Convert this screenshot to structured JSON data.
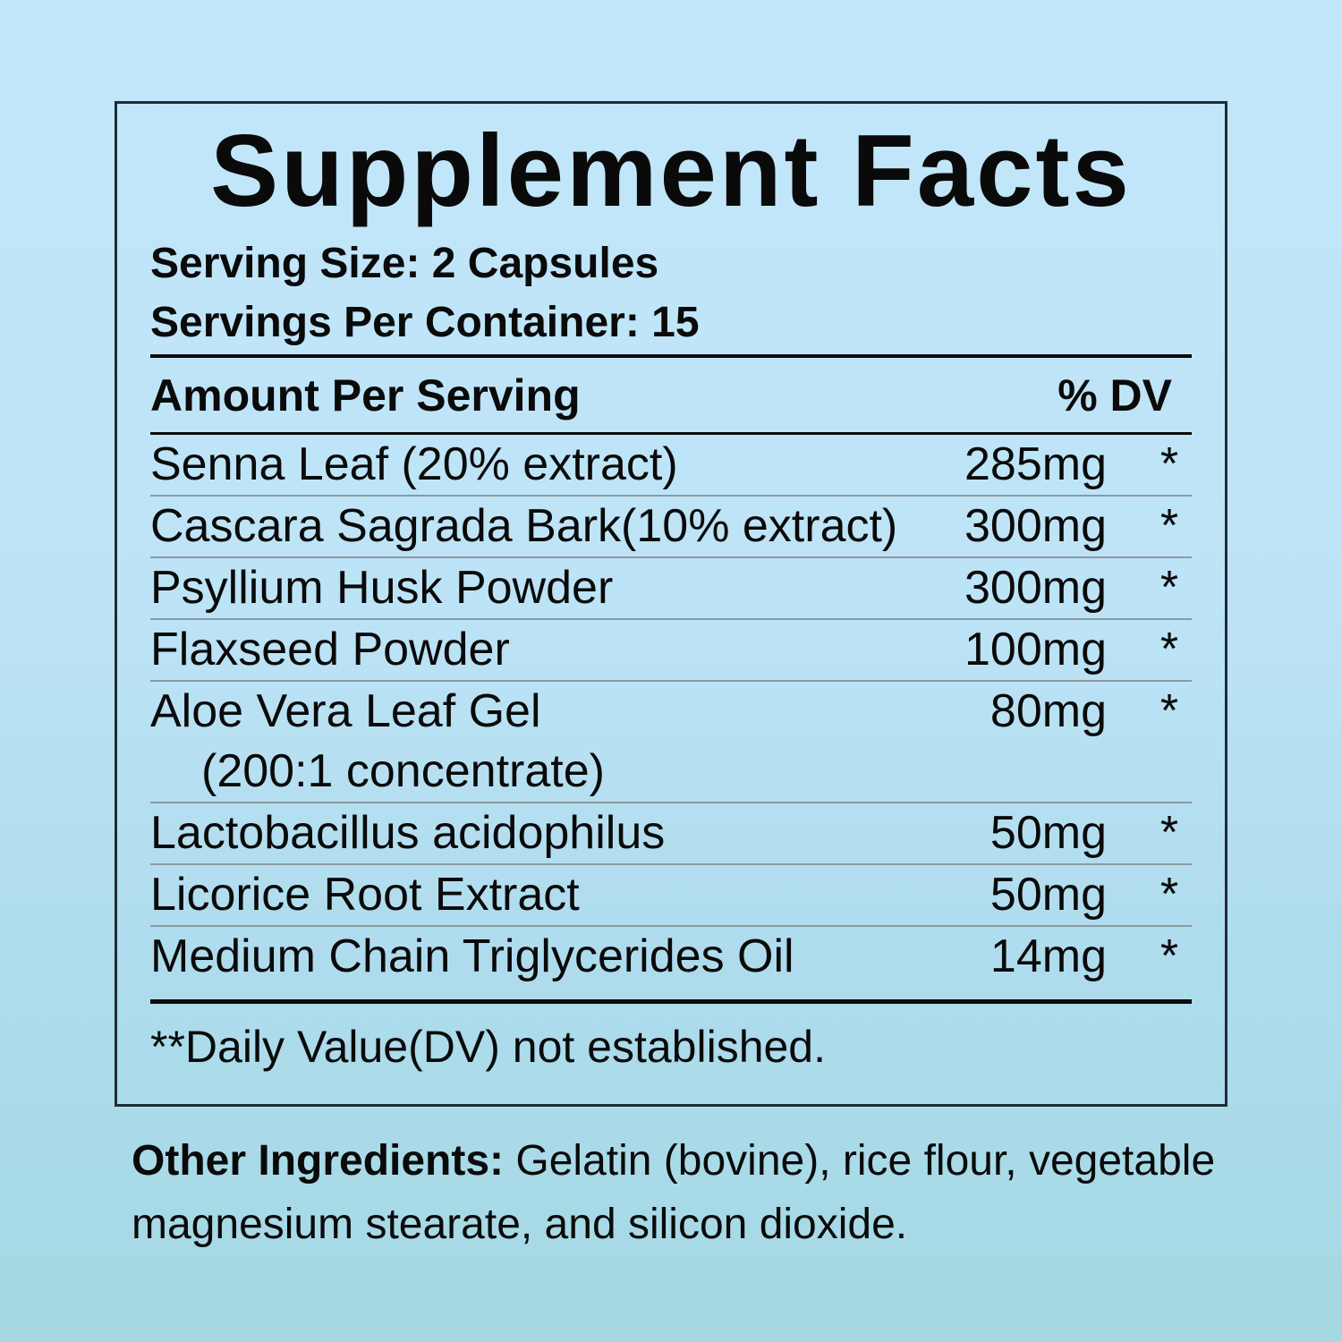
{
  "label": {
    "title": "Supplement Facts",
    "serving_size": "Serving Size: 2 Capsules",
    "servings_per_container": "Servings Per Container: 15",
    "table": {
      "header": {
        "amount_per_serving": "Amount Per Serving",
        "percent_dv": "% DV"
      },
      "rows": [
        {
          "name": "Senna Leaf (20% extract)",
          "amount": "285mg",
          "dv": "*"
        },
        {
          "name": "Cascara Sagrada Bark(10% extract)",
          "amount": "300mg",
          "dv": "*"
        },
        {
          "name": "Psyllium Husk Powder",
          "amount": "300mg",
          "dv": "*"
        },
        {
          "name": "Flaxseed Powder",
          "amount": "100mg",
          "dv": "*"
        },
        {
          "name": "Aloe Vera Leaf Gel",
          "sub": "(200:1 concentrate)",
          "amount": "80mg",
          "dv": "*"
        },
        {
          "name": "Lactobacillus acidophilus",
          "amount": "50mg",
          "dv": "*"
        },
        {
          "name": "Licorice Root Extract",
          "amount": "50mg",
          "dv": "*"
        },
        {
          "name": "Medium Chain Triglycerides Oil",
          "amount": "14mg",
          "dv": "*"
        }
      ],
      "footnote": "**Daily Value(DV) not established."
    },
    "other_ingredients": {
      "label": "Other Ingredients:",
      "text": " Gelatin (bovine), rice flour, vegetable magnesium stearate, and silicon dioxide."
    },
    "colors": {
      "background_top": "#c2e6f9",
      "background_bottom": "#a5d8e3",
      "box_border": "#1e2d37",
      "row_separator": "#8d99a0",
      "text": "#0a0a0a"
    }
  }
}
